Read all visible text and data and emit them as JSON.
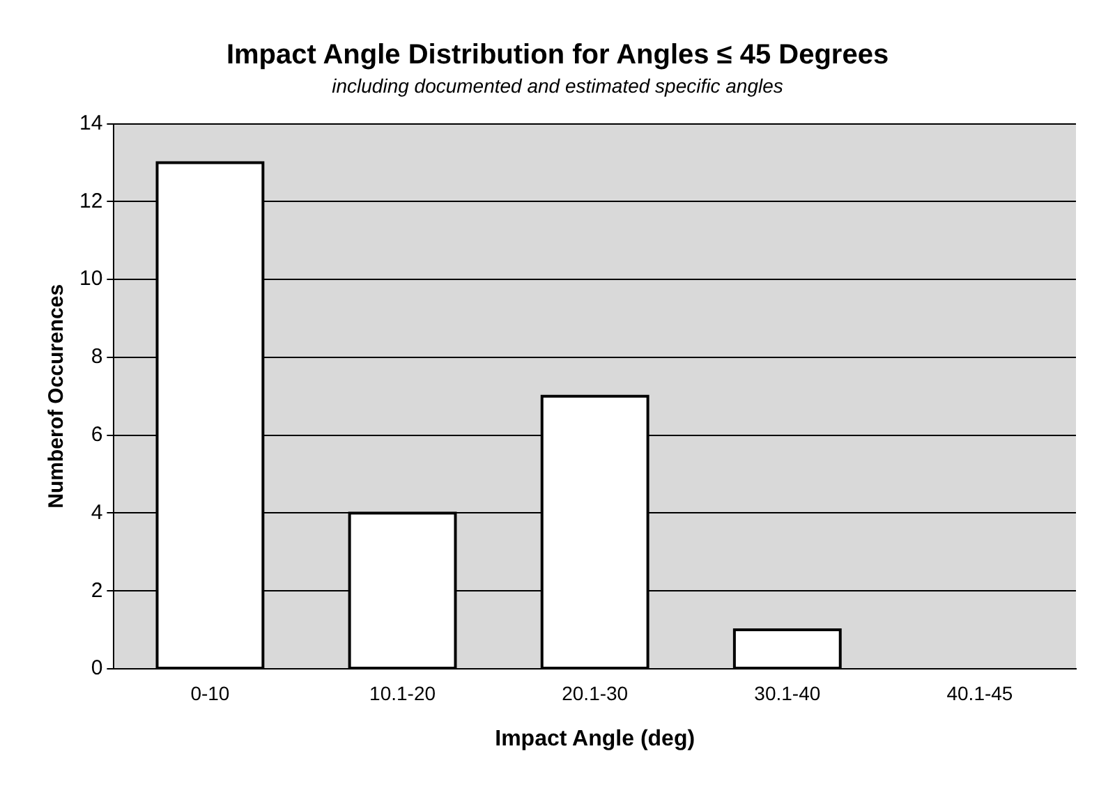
{
  "chart_data": {
    "type": "bar",
    "title": "Impact Angle Distribution for Angles ≤ 45 Degrees",
    "subtitle": "including documented and estimated specific angles",
    "xlabel": "Impact Angle (deg)",
    "ylabel": "Numberof Occurences",
    "categories": [
      "0-10",
      "10.1-20",
      "20.1-30",
      "30.1-40",
      "40.1-45"
    ],
    "values": [
      13,
      4,
      7,
      1,
      0
    ],
    "color": "#ffffff",
    "ylim": [
      0,
      14
    ],
    "yticks": [
      0,
      2,
      4,
      6,
      8,
      10,
      12,
      14
    ],
    "grid": "y",
    "legend": false
  }
}
